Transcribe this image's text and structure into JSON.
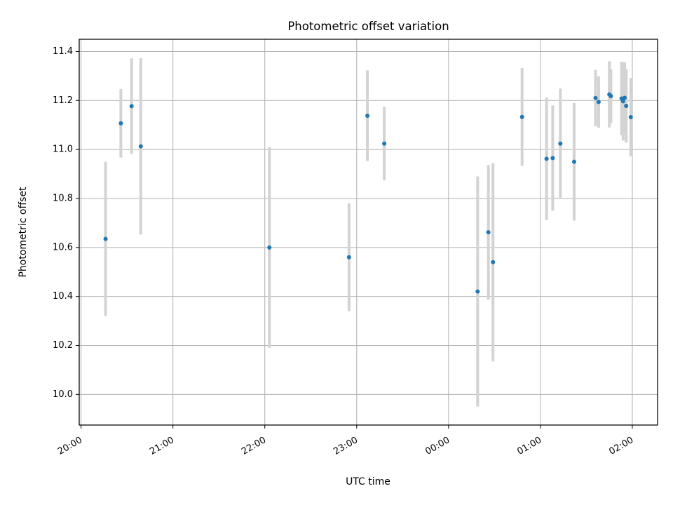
{
  "chart_data": {
    "type": "scatter",
    "title": "Photometric offset variation",
    "xlabel": "UTC time",
    "ylabel": "Photometric offset",
    "x_ticks": [
      "20:00",
      "21:00",
      "22:00",
      "23:00",
      "00:00",
      "01:00",
      "02:00"
    ],
    "x_tick_minutes": [
      0,
      60,
      120,
      180,
      240,
      300,
      360
    ],
    "xlim_minutes": [
      -1.2,
      376.5
    ],
    "y_ticks": [
      "10.0",
      "10.2",
      "10.4",
      "10.6",
      "10.8",
      "11.0",
      "11.2",
      "11.4"
    ],
    "y_tick_values": [
      10.0,
      10.2,
      10.4,
      10.6,
      10.8,
      11.0,
      11.2,
      11.4
    ],
    "ylim": [
      9.875,
      11.45
    ],
    "grid": true,
    "marker_color": "#1f77b4",
    "errorbar_color": "#d3d3d3",
    "series": [
      {
        "points": [
          {
            "t": "20:16",
            "y": 10.635,
            "err": 0.315
          },
          {
            "t": "20:26",
            "y": 11.107,
            "err": 0.14
          },
          {
            "t": "20:33",
            "y": 11.177,
            "err": 0.195
          },
          {
            "t": "20:39",
            "y": 11.013,
            "err": 0.36
          },
          {
            "t": "22:03",
            "y": 10.6,
            "err": 0.41
          },
          {
            "t": "22:55",
            "y": 10.56,
            "err": 0.22
          },
          {
            "t": "23:07",
            "y": 11.138,
            "err": 0.185
          },
          {
            "t": "23:18",
            "y": 11.024,
            "err": 0.15
          },
          {
            "t": "00:19",
            "y": 10.42,
            "err": 0.47
          },
          {
            "t": "00:26",
            "y": 10.662,
            "err": 0.275
          },
          {
            "t": "00:29",
            "y": 10.54,
            "err": 0.405
          },
          {
            "t": "00:48",
            "y": 11.133,
            "err": 0.2
          },
          {
            "t": "01:04",
            "y": 10.962,
            "err": 0.25
          },
          {
            "t": "01:08",
            "y": 10.965,
            "err": 0.215
          },
          {
            "t": "01:13",
            "y": 11.024,
            "err": 0.225
          },
          {
            "t": "01:22",
            "y": 10.95,
            "err": 0.24
          },
          {
            "t": "01:36",
            "y": 11.21,
            "err": 0.115
          },
          {
            "t": "01:38",
            "y": 11.194,
            "err": 0.105
          },
          {
            "t": "01:45",
            "y": 11.225,
            "err": 0.135
          },
          {
            "t": "01:46",
            "y": 11.218,
            "err": 0.11
          },
          {
            "t": "01:53",
            "y": 11.208,
            "err": 0.15
          },
          {
            "t": "01:54",
            "y": 11.197,
            "err": 0.16
          },
          {
            "t": "01:55",
            "y": 11.211,
            "err": 0.145
          },
          {
            "t": "01:56",
            "y": 11.178,
            "err": 0.15
          },
          {
            "t": "01:59",
            "y": 11.132,
            "err": 0.16
          }
        ]
      }
    ]
  }
}
